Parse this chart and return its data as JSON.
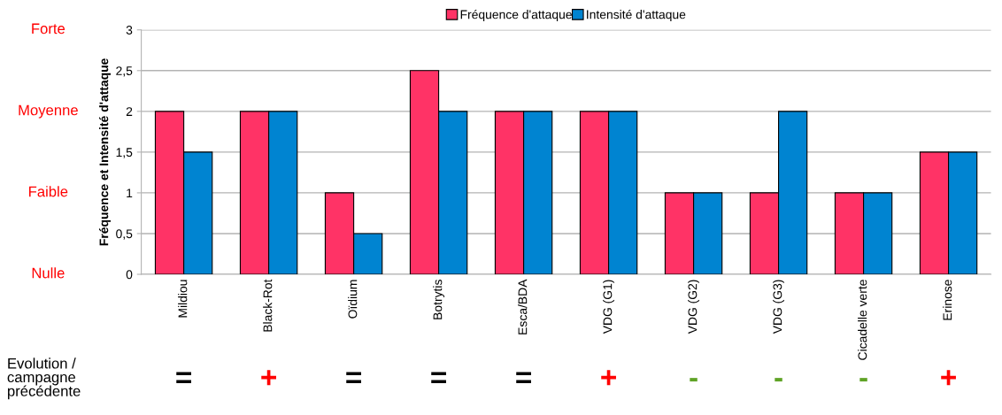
{
  "chart_data": {
    "type": "bar",
    "ylabel": "Fréquence et Intensité d'attaque",
    "categories": [
      "Mildiou",
      "Black-Rot",
      "Oïdium",
      "Botrytis",
      "Esca/BDA",
      "VDG (G1)",
      "VDG (G2)",
      "VDG (G3)",
      "Cicadelle verte",
      "Erinose"
    ],
    "series": [
      {
        "name": "Fréquence d'attaque",
        "color": "#ff3366",
        "values": [
          2,
          2,
          1,
          2.5,
          2,
          2,
          1,
          1,
          1,
          1.5
        ]
      },
      {
        "name": "Intensité d'attaque",
        "color": "#0084d1",
        "values": [
          1.5,
          2,
          0.5,
          2,
          2,
          2,
          1,
          2,
          1,
          1.5
        ]
      }
    ],
    "ylim": [
      0,
      3
    ],
    "yticks": [
      {
        "value": 0,
        "label": "0"
      },
      {
        "value": 0.5,
        "label": "0,5"
      },
      {
        "value": 1,
        "label": "1"
      },
      {
        "value": 1.5,
        "label": "1,5"
      },
      {
        "value": 2,
        "label": "2"
      },
      {
        "value": 2.5,
        "label": "2,5"
      },
      {
        "value": 3,
        "label": "3"
      }
    ],
    "grid": "y",
    "legend": "top",
    "annotations": [
      "Forte",
      "Moyenne",
      "Faible",
      "Nulle",
      "Evolution /\ncampagne\nprécédente",
      "=",
      "+",
      "=",
      "=",
      "=",
      "+",
      "-",
      "-",
      "-",
      "+"
    ]
  }
}
